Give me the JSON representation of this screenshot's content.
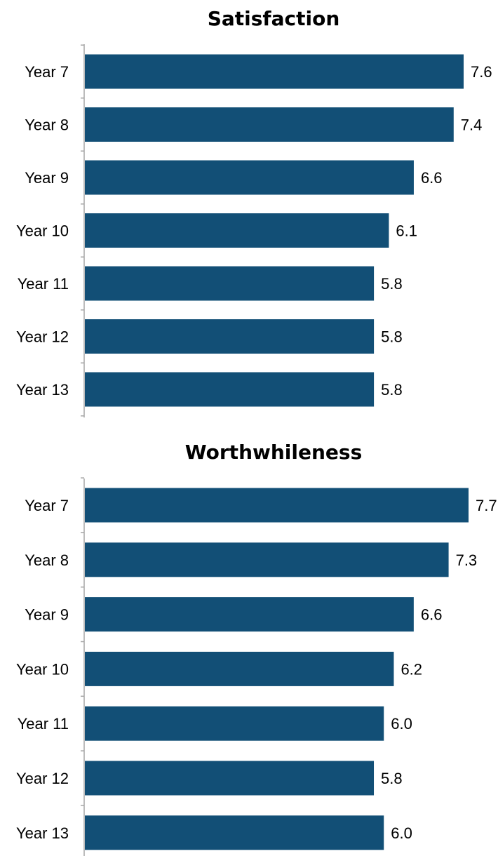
{
  "chart_data": [
    {
      "type": "bar",
      "orientation": "horizontal",
      "title": "Satisfaction",
      "categories": [
        "Year 7",
        "Year 8",
        "Year 9",
        "Year 10",
        "Year 11",
        "Year 12",
        "Year 13"
      ],
      "values": [
        7.6,
        7.4,
        6.6,
        6.1,
        5.8,
        5.8,
        5.8
      ],
      "data_labels": [
        "7.6",
        "7.4",
        "6.6",
        "6.1",
        "5.8",
        "5.8",
        "5.8"
      ],
      "bar_color": "#124f76",
      "xlim": [
        0,
        7.6
      ],
      "grid": false,
      "legend": "none"
    },
    {
      "type": "bar",
      "orientation": "horizontal",
      "title": "Worthwhileness",
      "categories": [
        "Year 7",
        "Year 8",
        "Year 9",
        "Year 10",
        "Year 11",
        "Year 12",
        "Year 13"
      ],
      "values": [
        7.7,
        7.3,
        6.6,
        6.2,
        6.0,
        5.8,
        6.0
      ],
      "data_labels": [
        "7.7",
        "7.3",
        "6.6",
        "6.2",
        "6.0",
        "5.8",
        "6.0"
      ],
      "bar_color": "#124f76",
      "xlim": [
        0,
        7.7
      ],
      "grid": false,
      "legend": "none"
    }
  ]
}
